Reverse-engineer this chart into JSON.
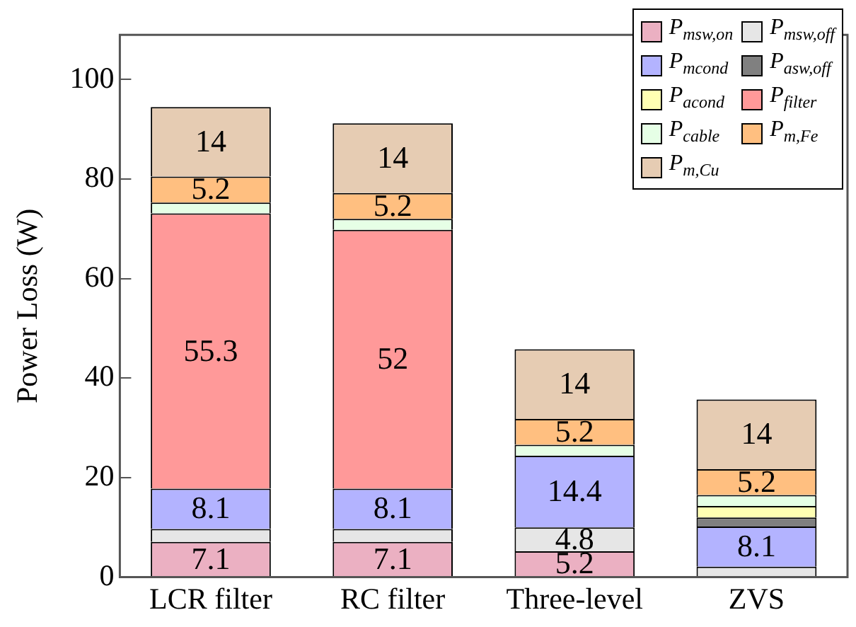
{
  "chart_data": {
    "type": "bar",
    "stacked": true,
    "ylabel": "Power Loss (W)",
    "categories": [
      "LCR filter",
      "RC filter",
      "Three-level",
      "ZVS"
    ],
    "ylim": [
      0,
      109
    ],
    "yticks": [
      0,
      20,
      40,
      60,
      80,
      100
    ],
    "grid": false,
    "legend": "top right",
    "series": [
      {
        "name": "P$_{msw,on}$",
        "color": "#ebb0c2",
        "values": [
          7.1,
          7.1,
          5.2,
          null
        ],
        "value_labels": [
          "7.1",
          "7.1",
          "5.2",
          null
        ]
      },
      {
        "name": "P$_{msw,off}$",
        "color": "#e6e6e6",
        "values": [
          2.6,
          2.6,
          4.8,
          2.1
        ],
        "value_labels": [
          null,
          null,
          "4.8",
          null
        ]
      },
      {
        "name": "P$_{mcond}$",
        "color": "#b3b3ff",
        "values": [
          8.1,
          8.1,
          14.4,
          8.1
        ],
        "value_labels": [
          "8.1",
          "8.1",
          "14.4",
          "8.1"
        ]
      },
      {
        "name": "P$_{asw,off}$",
        "color": "#808080",
        "values": [
          null,
          null,
          null,
          1.8
        ],
        "value_labels": [
          null,
          null,
          null,
          null
        ]
      },
      {
        "name": "P$_{acond}$",
        "color": "#ffffb3",
        "values": [
          null,
          null,
          null,
          2.3
        ],
        "value_labels": [
          null,
          null,
          null,
          null
        ]
      },
      {
        "name": "P$_{filter}$",
        "color": "#ff9999",
        "values": [
          55.3,
          52,
          null,
          null
        ],
        "value_labels": [
          "55.3",
          "52",
          null,
          null
        ]
      },
      {
        "name": "P$_{cable}$",
        "color": "#e6ffe6",
        "values": [
          2.2,
          2.2,
          2.2,
          2.2
        ],
        "value_labels": [
          null,
          null,
          null,
          null
        ]
      },
      {
        "name": "P$_{m,Fe}$",
        "color": "#ffbf80",
        "values": [
          5.2,
          5.2,
          5.2,
          5.2
        ],
        "value_labels": [
          "5.2",
          "5.2",
          "5.2",
          "5.2"
        ]
      },
      {
        "name": "P$_{m,Cu}$",
        "color": "#e6ccb3",
        "values": [
          14,
          14,
          14,
          14
        ],
        "value_labels": [
          "14",
          "14",
          "14",
          "14"
        ]
      }
    ]
  }
}
